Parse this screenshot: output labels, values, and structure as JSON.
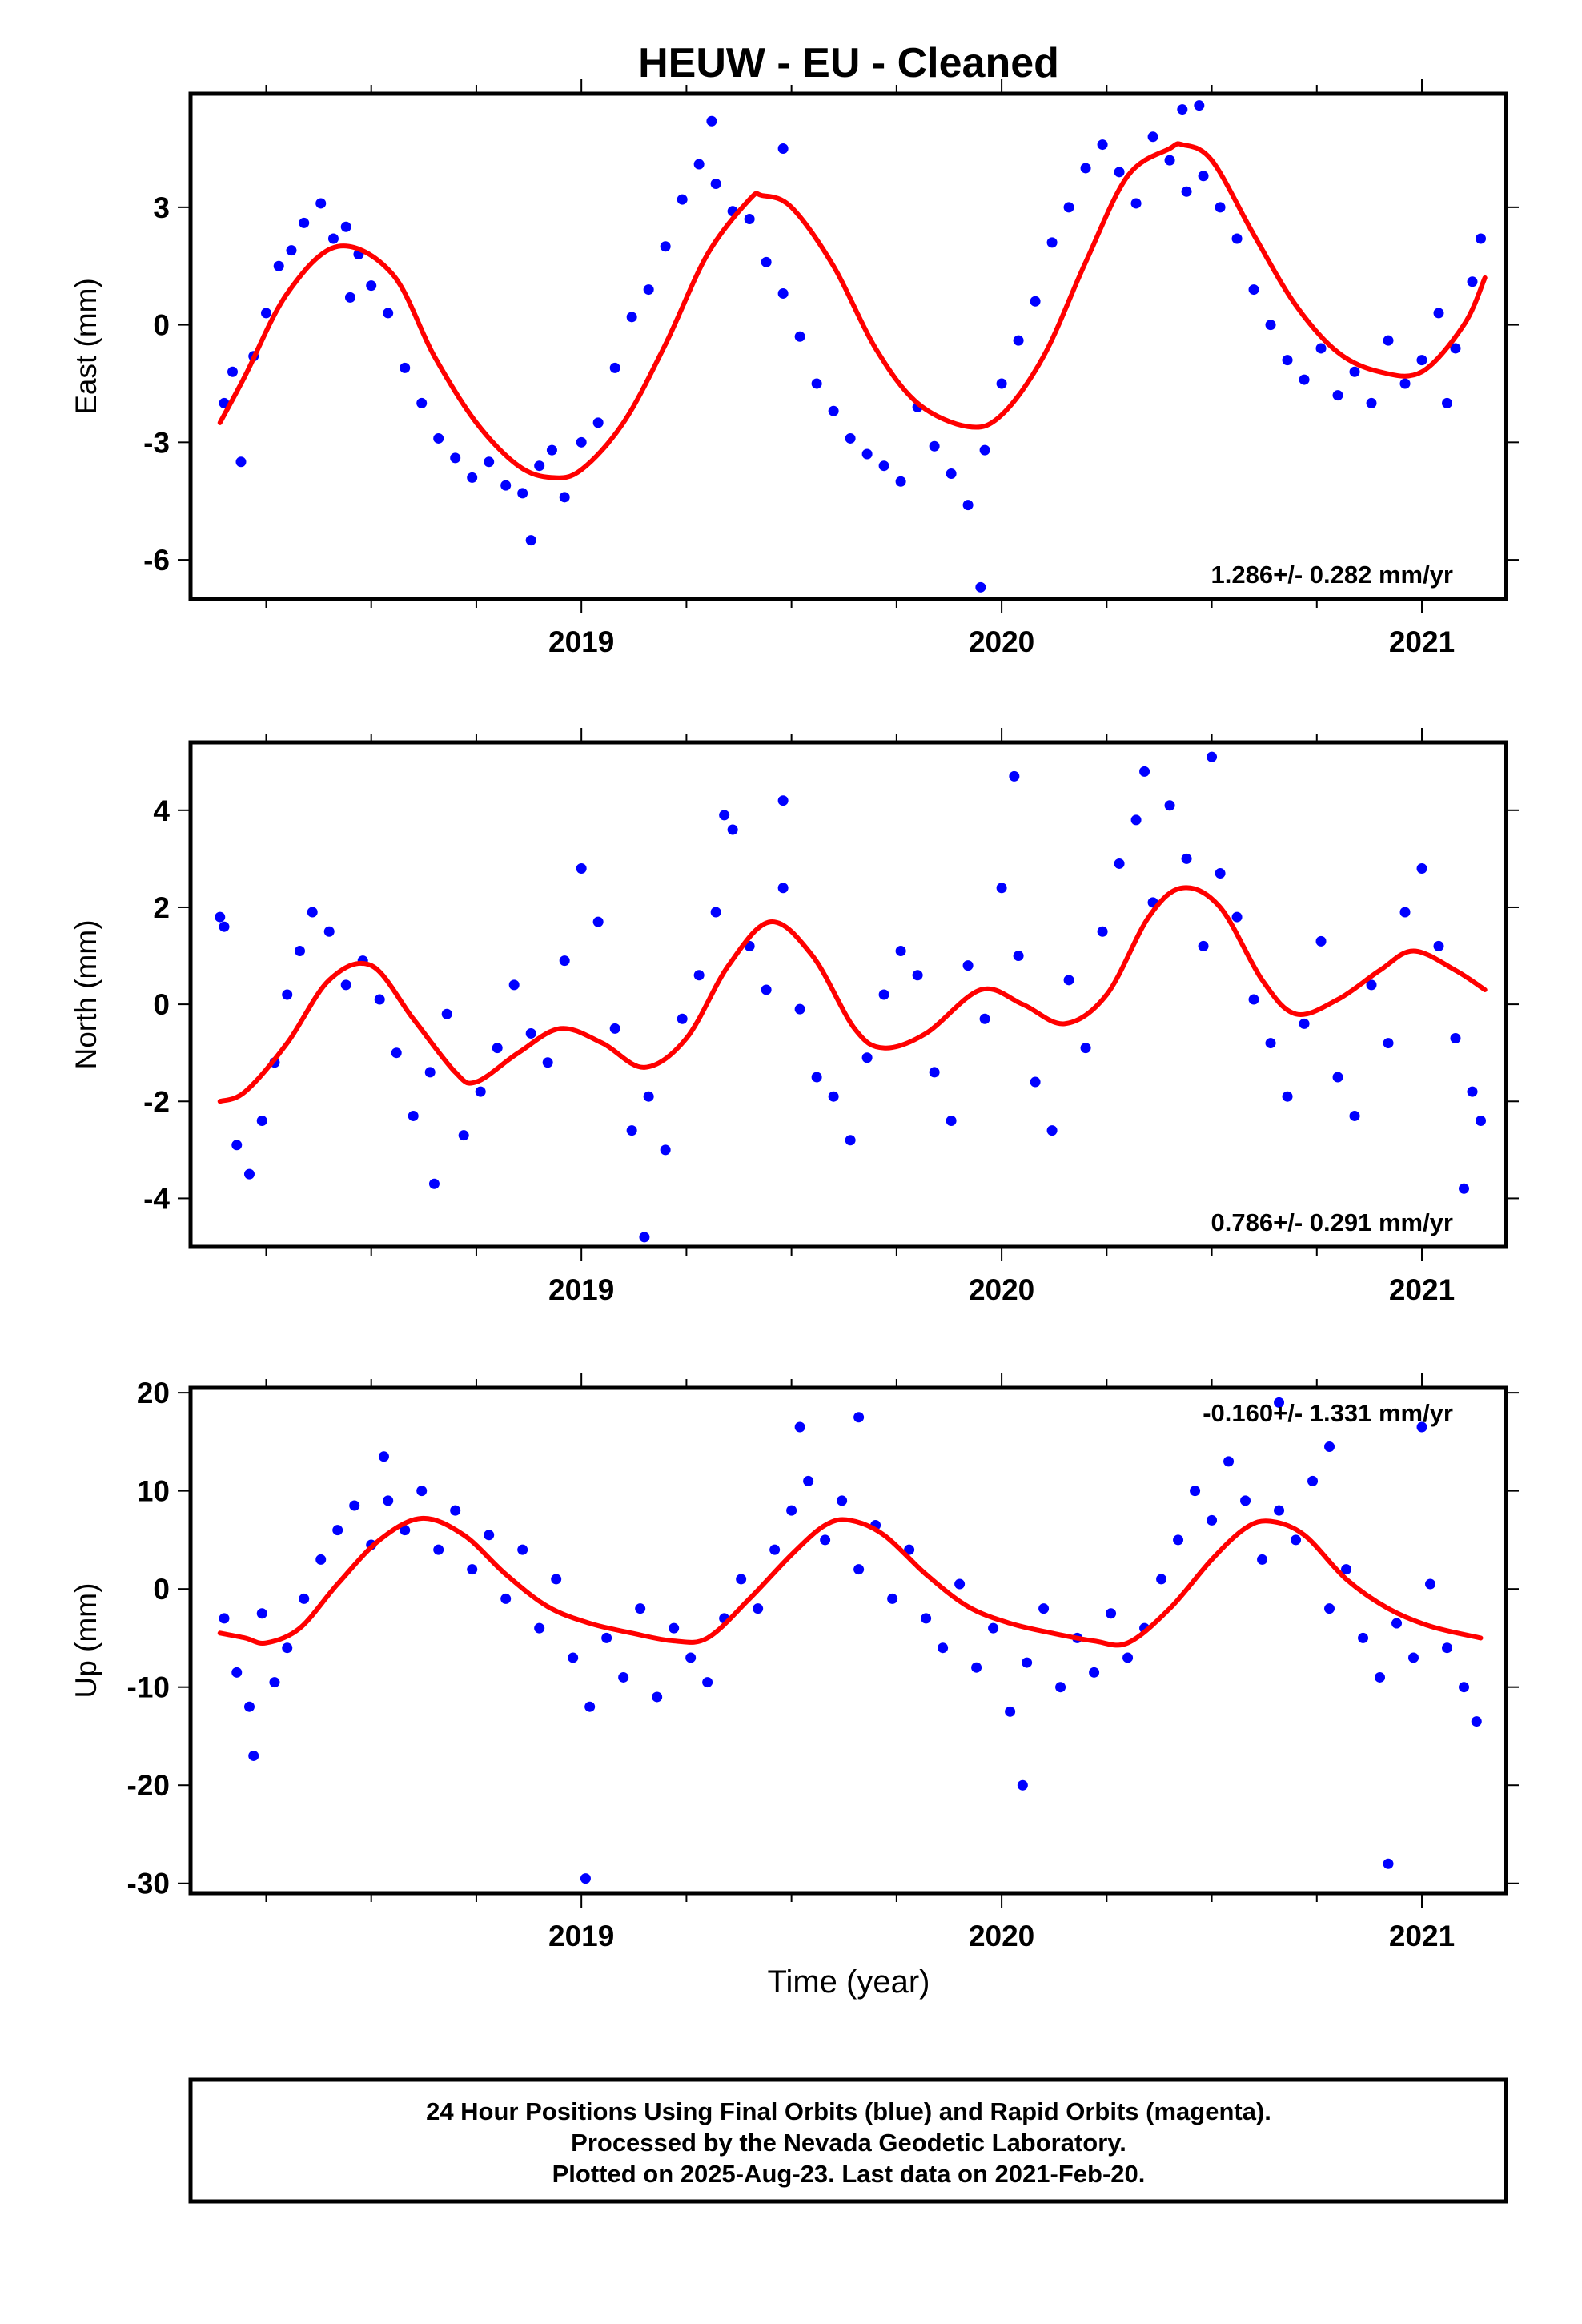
{
  "title": "HEUW  - EU - Cleaned",
  "xlabel": "Time (year)",
  "footer": {
    "line1": "24 Hour Positions Using Final Orbits (blue) and Rapid Orbits (magenta).",
    "line2": "Processed by the Nevada Geodetic Laboratory.",
    "line3": "Plotted on 2025-Aug-23. Last data on 2021-Feb-20."
  },
  "colors": {
    "points": "#0000ff",
    "model": "#ff0000",
    "frame": "#000000"
  },
  "chart_data": [
    {
      "type": "scatter",
      "ylabel": "East (mm)",
      "rate_text": "1.286+/- 0.282 mm/yr",
      "xlim": [
        2018.07,
        2021.2
      ],
      "ylim": [
        -7.0,
        5.9
      ],
      "xticks": [
        2019,
        2020,
        2021
      ],
      "xtick_labels": [
        "2019",
        "2020",
        "2021"
      ],
      "yticks": [
        -6,
        -3,
        0,
        3
      ],
      "ytick_labels": [
        "-6",
        "-3",
        "0",
        "3"
      ],
      "series": [
        {
          "kind": "model",
          "x": [
            2018.14,
            2018.2,
            2018.3,
            2018.42,
            2018.55,
            2018.65,
            2018.75,
            2018.85,
            2018.93,
            2019.0,
            2019.1,
            2019.2,
            2019.3,
            2019.4,
            2019.43,
            2019.5,
            2019.6,
            2019.7,
            2019.8,
            2019.92,
            2020.0,
            2020.1,
            2020.2,
            2020.3,
            2020.4,
            2020.43,
            2020.5,
            2020.6,
            2020.7,
            2020.8,
            2020.9,
            2021.0,
            2021.1,
            2021.15
          ],
          "y": [
            -2.5,
            -1.3,
            0.8,
            2.0,
            1.3,
            -0.8,
            -2.5,
            -3.6,
            -3.9,
            -3.7,
            -2.5,
            -0.5,
            1.8,
            3.2,
            3.3,
            3.0,
            1.5,
            -0.6,
            -2.0,
            -2.6,
            -2.3,
            -0.8,
            1.6,
            3.8,
            4.5,
            4.6,
            4.2,
            2.3,
            0.5,
            -0.7,
            -1.2,
            -1.2,
            0.0,
            1.2
          ]
        },
        {
          "kind": "points",
          "x": [
            2018.15,
            2018.17,
            2018.19,
            2018.22,
            2018.25,
            2018.28,
            2018.31,
            2018.34,
            2018.38,
            2018.41,
            2018.44,
            2018.47,
            2018.5,
            2018.54,
            2018.58,
            2018.62,
            2018.66,
            2018.7,
            2018.74,
            2018.78,
            2018.82,
            2018.86,
            2018.9,
            2018.93,
            2018.96,
            2019.0,
            2019.04,
            2019.08,
            2019.12,
            2019.16,
            2019.2,
            2019.24,
            2019.28,
            2019.32,
            2019.36,
            2019.4,
            2019.44,
            2019.48,
            2019.52,
            2019.56,
            2019.6,
            2019.64,
            2019.68,
            2019.72,
            2019.76,
            2019.8,
            2019.84,
            2019.88,
            2019.92,
            2019.96,
            2020.0,
            2020.04,
            2020.08,
            2020.12,
            2020.16,
            2020.2,
            2020.24,
            2020.28,
            2020.32,
            2020.36,
            2020.4,
            2020.44,
            2020.48,
            2020.52,
            2020.56,
            2020.6,
            2020.64,
            2020.68,
            2020.72,
            2020.76,
            2020.8,
            2020.84,
            2020.88,
            2020.92,
            2020.96,
            2021.0,
            2021.04,
            2021.08,
            2021.12,
            2021.14,
            2018.45,
            2018.88,
            2019.31,
            2019.48,
            2019.95,
            2020.43,
            2020.47,
            2021.06
          ],
          "y": [
            -2.0,
            -1.2,
            -3.5,
            -0.8,
            0.3,
            1.5,
            1.9,
            2.6,
            3.1,
            2.2,
            2.5,
            1.8,
            1.0,
            0.3,
            -1.1,
            -2.0,
            -2.9,
            -3.4,
            -3.9,
            -3.5,
            -4.1,
            -4.3,
            -3.6,
            -3.2,
            -4.4,
            -3.0,
            -2.5,
            -1.1,
            0.2,
            0.9,
            2.0,
            3.2,
            4.1,
            3.6,
            2.9,
            2.7,
            1.6,
            0.8,
            -0.3,
            -1.5,
            -2.2,
            -2.9,
            -3.3,
            -3.6,
            -4.0,
            -2.1,
            -3.1,
            -3.8,
            -4.6,
            -3.2,
            -1.5,
            -0.4,
            0.6,
            2.1,
            3.0,
            4.0,
            4.6,
            3.9,
            3.1,
            4.8,
            4.2,
            3.4,
            3.8,
            3.0,
            2.2,
            0.9,
            0.0,
            -0.9,
            -1.4,
            -0.6,
            -1.8,
            -1.2,
            -2.0,
            -0.4,
            -1.5,
            -0.9,
            0.3,
            -0.6,
            1.1,
            2.2,
            0.7,
            -5.5,
            5.2,
            4.5,
            -6.7,
            5.5,
            5.6,
            -2.0
          ]
        }
      ]
    },
    {
      "type": "scatter",
      "ylabel": "North (mm)",
      "rate_text": "0.786+/- 0.291 mm/yr",
      "xlim": [
        2018.07,
        2021.2
      ],
      "ylim": [
        -5.0,
        5.4
      ],
      "xticks": [
        2019,
        2020,
        2021
      ],
      "xtick_labels": [
        "2019",
        "2020",
        "2021"
      ],
      "yticks": [
        -4,
        -2,
        0,
        2,
        4
      ],
      "ytick_labels": [
        "-4",
        "-2",
        "0",
        "2",
        "4"
      ],
      "series": [
        {
          "kind": "model",
          "x": [
            2018.14,
            2018.2,
            2018.3,
            2018.4,
            2018.5,
            2018.6,
            2018.7,
            2018.75,
            2018.85,
            2018.95,
            2019.05,
            2019.15,
            2019.25,
            2019.35,
            2019.45,
            2019.55,
            2019.65,
            2019.72,
            2019.82,
            2019.95,
            2020.05,
            2020.15,
            2020.25,
            2020.35,
            2020.43,
            2020.52,
            2020.62,
            2020.7,
            2020.8,
            2020.9,
            2020.98,
            2021.08,
            2021.15
          ],
          "y": [
            -2.0,
            -1.8,
            -0.8,
            0.5,
            0.8,
            -0.3,
            -1.4,
            -1.6,
            -1.0,
            -0.5,
            -0.8,
            -1.3,
            -0.7,
            0.8,
            1.7,
            1.0,
            -0.5,
            -0.9,
            -0.6,
            0.3,
            0.0,
            -0.4,
            0.2,
            1.8,
            2.4,
            2.0,
            0.5,
            -0.2,
            0.1,
            0.7,
            1.1,
            0.7,
            0.3
          ]
        },
        {
          "kind": "points",
          "x": [
            2018.15,
            2018.18,
            2018.21,
            2018.24,
            2018.27,
            2018.3,
            2018.33,
            2018.36,
            2018.4,
            2018.44,
            2018.48,
            2018.52,
            2018.56,
            2018.6,
            2018.64,
            2018.68,
            2018.72,
            2018.76,
            2018.8,
            2018.84,
            2018.88,
            2018.92,
            2018.96,
            2019.0,
            2019.04,
            2019.08,
            2019.12,
            2019.16,
            2019.2,
            2019.24,
            2019.28,
            2019.32,
            2019.36,
            2019.4,
            2019.44,
            2019.48,
            2019.52,
            2019.56,
            2019.6,
            2019.64,
            2019.68,
            2019.72,
            2019.76,
            2019.8,
            2019.84,
            2019.88,
            2019.92,
            2019.96,
            2020.0,
            2020.04,
            2020.08,
            2020.12,
            2020.16,
            2020.2,
            2020.24,
            2020.28,
            2020.32,
            2020.36,
            2020.4,
            2020.44,
            2020.48,
            2020.52,
            2020.56,
            2020.6,
            2020.64,
            2020.68,
            2020.72,
            2020.76,
            2020.8,
            2020.84,
            2020.88,
            2020.92,
            2020.96,
            2021.0,
            2021.04,
            2021.08,
            2021.12,
            2021.14,
            2018.14,
            2018.65,
            2019.15,
            2019.34,
            2019.48,
            2020.03,
            2020.34,
            2020.5,
            2021.1
          ],
          "y": [
            1.6,
            -2.9,
            -3.5,
            -2.4,
            -1.2,
            0.2,
            1.1,
            1.9,
            1.5,
            0.4,
            0.9,
            0.1,
            -1.0,
            -2.3,
            -1.4,
            -0.2,
            -2.7,
            -1.8,
            -0.9,
            0.4,
            -0.6,
            -1.2,
            0.9,
            2.8,
            1.7,
            -0.5,
            -2.6,
            -1.9,
            -3.0,
            -0.3,
            0.6,
            1.9,
            3.6,
            1.2,
            0.3,
            2.4,
            -0.1,
            -1.5,
            -1.9,
            -2.8,
            -1.1,
            0.2,
            1.1,
            0.6,
            -1.4,
            -2.4,
            0.8,
            -0.3,
            2.4,
            1.0,
            -1.6,
            -2.6,
            0.5,
            -0.9,
            1.5,
            2.9,
            3.8,
            2.1,
            4.1,
            3.0,
            1.2,
            2.7,
            1.8,
            0.1,
            -0.8,
            -1.9,
            -0.4,
            1.3,
            -1.5,
            -2.3,
            0.4,
            -0.8,
            1.9,
            2.8,
            1.2,
            -0.7,
            -1.8,
            -2.4,
            1.8,
            -3.7,
            -4.8,
            3.9,
            4.2,
            4.7,
            4.8,
            5.1,
            -3.8
          ]
        }
      ]
    },
    {
      "type": "scatter",
      "ylabel": "Up (mm)",
      "rate_text": "-0.160+/- 1.331 mm/yr",
      "xlim": [
        2018.07,
        2021.2
      ],
      "ylim": [
        -31,
        20.5
      ],
      "xticks": [
        2019,
        2020,
        2021
      ],
      "xtick_labels": [
        "2019",
        "2020",
        "2021"
      ],
      "yticks": [
        -30,
        -20,
        -10,
        0,
        10,
        20
      ],
      "ytick_labels": [
        "-30",
        "-20",
        "-10",
        "0",
        "10",
        "20"
      ],
      "series": [
        {
          "kind": "model",
          "x": [
            2018.14,
            2018.2,
            2018.25,
            2018.33,
            2018.42,
            2018.52,
            2018.62,
            2018.72,
            2018.82,
            2018.92,
            2019.02,
            2019.12,
            2019.22,
            2019.3,
            2019.4,
            2019.5,
            2019.58,
            2019.64,
            2019.72,
            2019.82,
            2019.92,
            2020.02,
            2020.12,
            2020.22,
            2020.3,
            2020.4,
            2020.5,
            2020.58,
            2020.64,
            2020.72,
            2020.82,
            2020.92,
            2021.02,
            2021.14
          ],
          "y": [
            -4.5,
            -5.0,
            -5.5,
            -4.0,
            0.5,
            5.0,
            7.2,
            5.5,
            1.5,
            -1.8,
            -3.5,
            -4.5,
            -5.3,
            -5.0,
            -1.0,
            3.5,
            6.5,
            7.0,
            5.5,
            1.5,
            -1.8,
            -3.5,
            -4.5,
            -5.3,
            -5.5,
            -2.0,
            3.0,
            6.2,
            6.9,
            5.5,
            1.0,
            -2.0,
            -3.8,
            -5.0
          ]
        },
        {
          "kind": "points",
          "x": [
            2018.15,
            2018.18,
            2018.21,
            2018.24,
            2018.27,
            2018.3,
            2018.34,
            2018.38,
            2018.42,
            2018.46,
            2018.5,
            2018.54,
            2018.58,
            2018.62,
            2018.66,
            2018.7,
            2018.74,
            2018.78,
            2018.82,
            2018.86,
            2018.9,
            2018.94,
            2018.98,
            2019.02,
            2019.06,
            2019.1,
            2019.14,
            2019.18,
            2019.22,
            2019.26,
            2019.3,
            2019.34,
            2019.38,
            2019.42,
            2019.46,
            2019.5,
            2019.54,
            2019.58,
            2019.62,
            2019.66,
            2019.7,
            2019.74,
            2019.78,
            2019.82,
            2019.86,
            2019.9,
            2019.94,
            2019.98,
            2020.02,
            2020.06,
            2020.1,
            2020.14,
            2020.18,
            2020.22,
            2020.26,
            2020.3,
            2020.34,
            2020.38,
            2020.42,
            2020.46,
            2020.5,
            2020.54,
            2020.58,
            2020.62,
            2020.66,
            2020.7,
            2020.74,
            2020.78,
            2020.82,
            2020.86,
            2020.9,
            2020.94,
            2020.98,
            2021.02,
            2021.06,
            2021.1,
            2021.13,
            2018.22,
            2018.53,
            2019.01,
            2019.52,
            2019.66,
            2020.05,
            2020.66,
            2020.78,
            2020.92,
            2021.0
          ],
          "y": [
            -3.0,
            -8.5,
            -12.0,
            -2.5,
            -9.5,
            -6.0,
            -1.0,
            3.0,
            6.0,
            8.5,
            4.5,
            9.0,
            6.0,
            10.0,
            4.0,
            8.0,
            2.0,
            5.5,
            -1.0,
            4.0,
            -4.0,
            1.0,
            -7.0,
            -12.0,
            -5.0,
            -9.0,
            -2.0,
            -11.0,
            -4.0,
            -7.0,
            -9.5,
            -3.0,
            1.0,
            -2.0,
            4.0,
            8.0,
            11.0,
            5.0,
            9.0,
            2.0,
            6.5,
            -1.0,
            4.0,
            -3.0,
            -6.0,
            0.5,
            -8.0,
            -4.0,
            -12.5,
            -7.5,
            -2.0,
            -10.0,
            -5.0,
            -8.5,
            -2.5,
            -7.0,
            -4.0,
            1.0,
            5.0,
            10.0,
            7.0,
            13.0,
            9.0,
            3.0,
            8.0,
            5.0,
            11.0,
            -2.0,
            2.0,
            -5.0,
            -9.0,
            -3.5,
            -7.0,
            0.5,
            -6.0,
            -10.0,
            -13.5,
            -17.0,
            13.5,
            -29.5,
            16.5,
            17.5,
            -20.0,
            19.0,
            14.5,
            -28.0,
            16.5
          ]
        }
      ]
    }
  ]
}
